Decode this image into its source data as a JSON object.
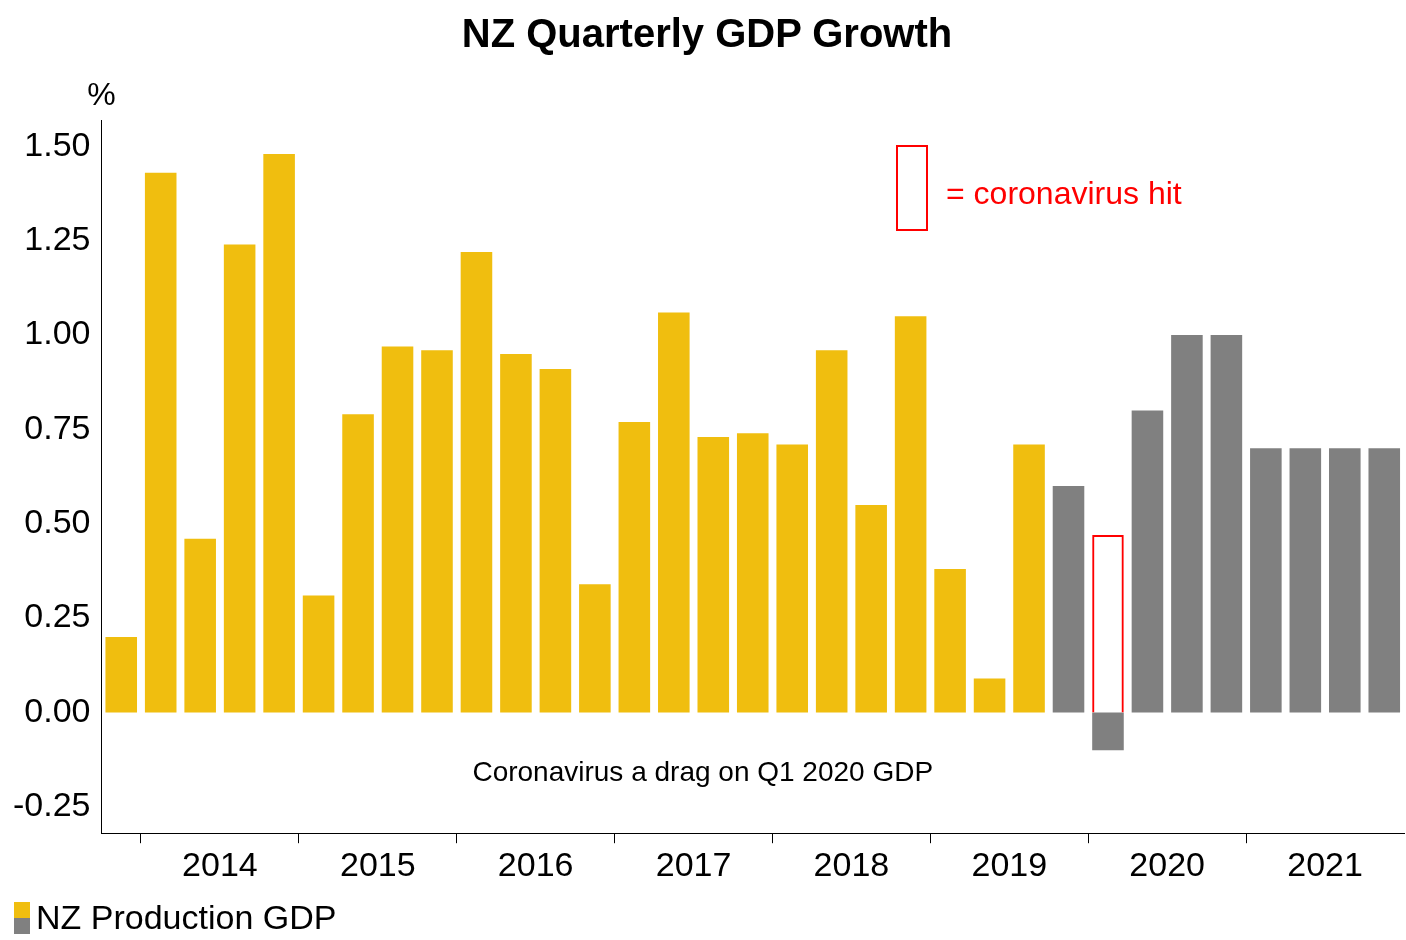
{
  "chart_data": {
    "type": "bar",
    "title": "NZ Quarterly GDP Growth",
    "ylabel": "%",
    "categories": [
      null,
      null,
      "2014",
      null,
      null,
      null,
      "2015",
      null,
      null,
      null,
      "2016",
      null,
      null,
      null,
      "2017",
      null,
      null,
      null,
      "2018",
      null,
      null,
      null,
      "2019",
      null,
      null,
      null,
      "2020",
      null,
      null,
      null,
      "2021",
      null,
      null
    ],
    "series": [
      {
        "name": "NZ Production GDP",
        "values": [
          0.2,
          1.43,
          0.46,
          1.24,
          1.48,
          0.31,
          0.79,
          0.97,
          0.96,
          1.22,
          0.95,
          0.91,
          0.34,
          0.77,
          1.06,
          0.73,
          0.74,
          0.71,
          0.96,
          0.55,
          1.05,
          0.38,
          0.09,
          0.71,
          0.6,
          -0.1,
          0.8,
          1.0,
          1.0,
          0.7,
          0.7,
          0.7,
          0.7
        ],
        "colors": [
          "#f0be0f",
          "#f0be0f",
          "#f0be0f",
          "#f0be0f",
          "#f0be0f",
          "#f0be0f",
          "#f0be0f",
          "#f0be0f",
          "#f0be0f",
          "#f0be0f",
          "#f0be0f",
          "#f0be0f",
          "#f0be0f",
          "#f0be0f",
          "#f0be0f",
          "#f0be0f",
          "#f0be0f",
          "#f0be0f",
          "#f0be0f",
          "#f0be0f",
          "#f0be0f",
          "#f0be0f",
          "#f0be0f",
          "#f0be0f",
          "#808080",
          "#808080",
          "#808080",
          "#808080",
          "#808080",
          "#808080",
          "#808080",
          "#808080",
          "#808080"
        ]
      },
      {
        "color": "#ff0000",
        "values": [
          null,
          null,
          null,
          null,
          null,
          null,
          null,
          null,
          null,
          null,
          null,
          null,
          null,
          null,
          null,
          null,
          null,
          null,
          null,
          null,
          null,
          null,
          null,
          null,
          null,
          0.47,
          null,
          null,
          null,
          null,
          null,
          null,
          null
        ]
      }
    ],
    "ylim": [
      -0.32,
      1.57
    ],
    "yticks": [
      {
        "value": -0.25,
        "label": "-0.25"
      },
      {
        "value": 0,
        "label": "0.00"
      },
      {
        "value": 0.25,
        "label": "0.25"
      },
      {
        "value": 0.5,
        "label": "0.50"
      },
      {
        "value": 0.75,
        "label": "0.75"
      },
      {
        "value": 1,
        "label": "1.00"
      },
      {
        "value": 1.25,
        "label": "1.25"
      },
      {
        "value": 1.5,
        "label": "1.50"
      }
    ],
    "annotations": [
      "= coronavirus hit",
      "Coronavirus a drag on Q1 2020 GDP"
    ],
    "legend": "bottom left"
  }
}
